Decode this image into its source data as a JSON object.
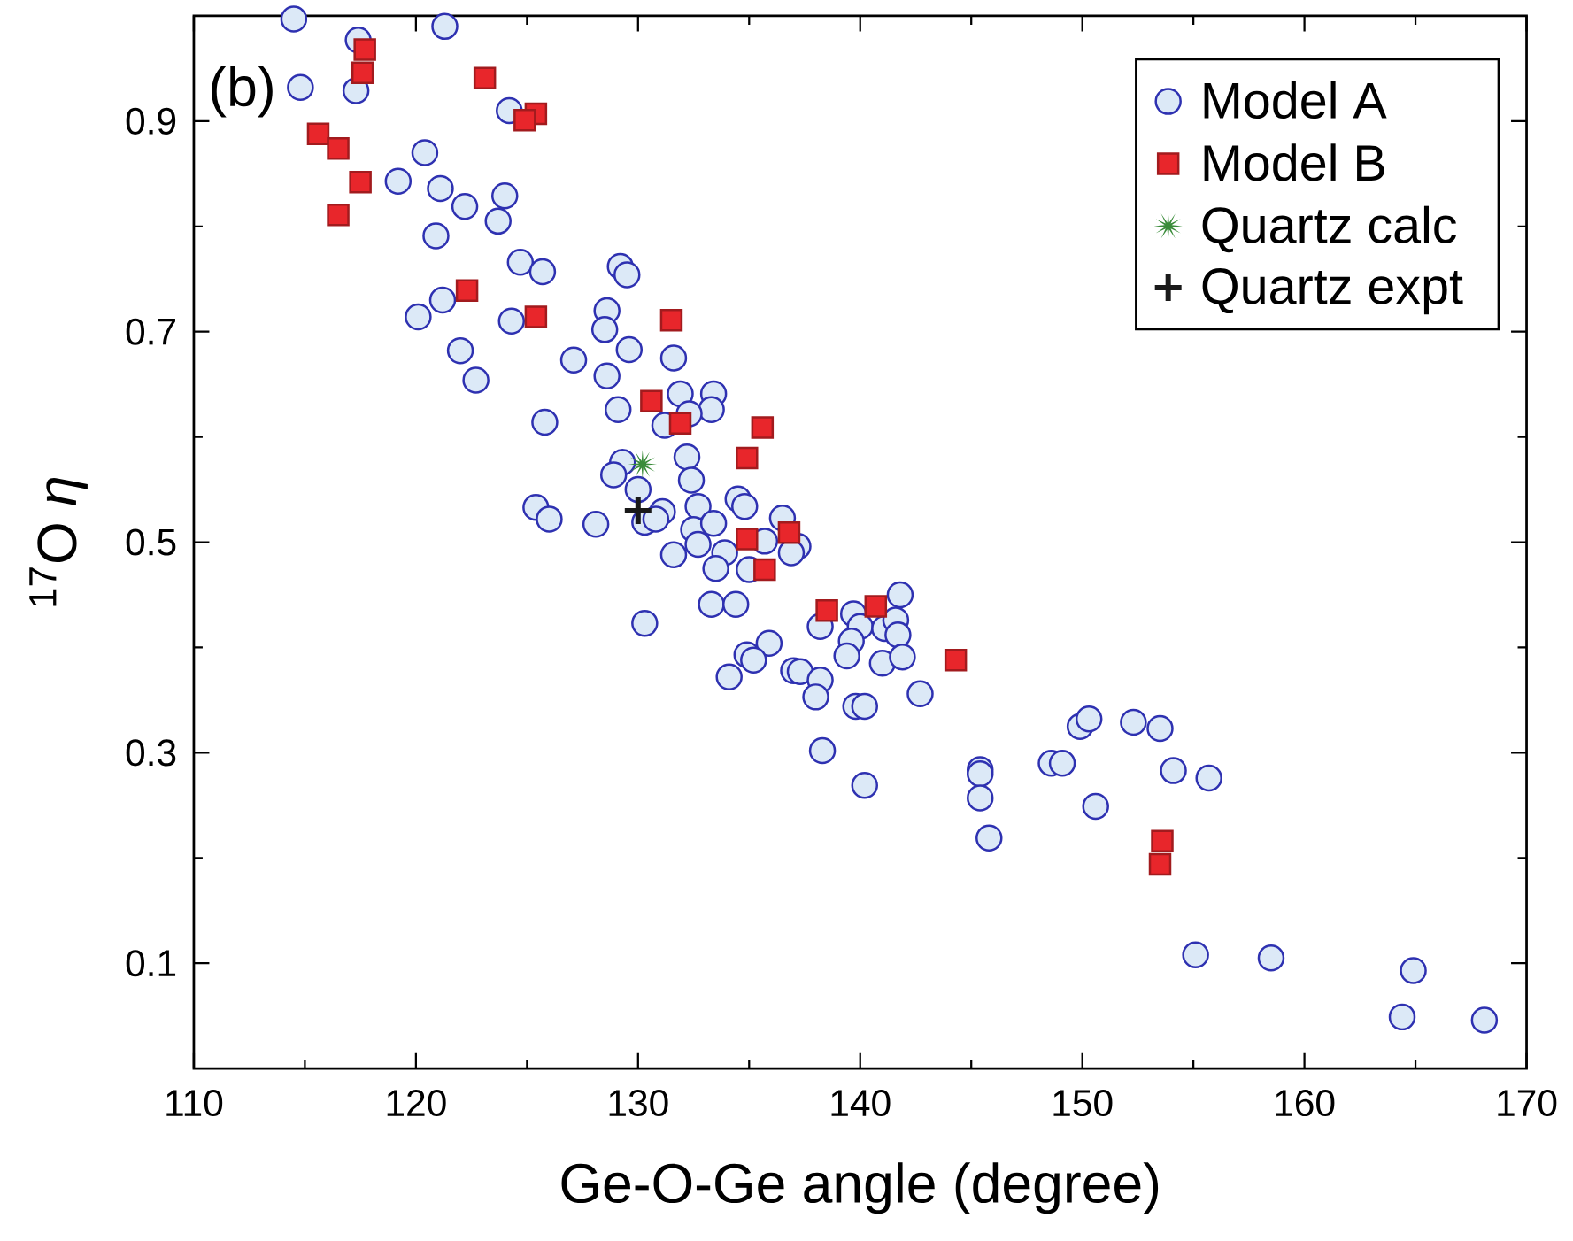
{
  "chart_data": {
    "type": "scatter",
    "xlabel": "Ge-O-Ge angle (degree)",
    "ylabel": "$^{17}$O *η*",
    "xlim": [
      110,
      170
    ],
    "ylim": [
      0,
      1
    ],
    "xticks": [
      110,
      120,
      130,
      140,
      150,
      160,
      170
    ],
    "yticks": [
      0.1,
      0.3,
      0.5,
      0.7,
      0.9
    ],
    "legend": "top right",
    "grid": false,
    "annotations": [
      "(b)"
    ],
    "series": [
      {
        "name": "Model A",
        "color": "#dce9f7",
        "marker": "circle",
        "x": [
          114.5,
          121.3,
          114.8,
          117.4,
          117.3,
          124.2,
          120.4,
          119.2,
          121.1,
          122.2,
          124.0,
          123.7,
          120.9,
          124.7,
          125.7,
          129.2,
          129.5,
          120.1,
          121.2,
          124.3,
          128.6,
          128.5,
          122.0,
          122.7,
          127.1,
          129.6,
          128.6,
          131.6,
          131.9,
          133.4,
          133.3,
          132.3,
          131.2,
          129.1,
          125.8,
          132.2,
          132.4,
          129.3,
          128.9,
          130.0,
          130.3,
          125.4,
          126.0,
          128.1,
          131.1,
          130.8,
          132.7,
          132.5,
          132.7,
          131.6,
          134.5,
          134.8,
          133.4,
          133.9,
          133.5,
          136.5,
          137.2,
          135.7,
          136.9,
          135.0,
          133.3,
          134.4,
          130.3,
          135.9,
          134.9,
          135.2,
          134.1,
          137.0,
          137.3,
          138.2,
          139.7,
          140.0,
          139.6,
          139.4,
          138.2,
          138.0,
          139.8,
          140.2,
          141.8,
          141.1,
          141.6,
          141.7,
          141.0,
          141.9,
          142.7,
          138.3,
          140.2,
          145.4,
          145.4,
          145.4,
          145.8,
          148.6,
          149.1,
          149.9,
          150.3,
          150.6,
          152.3,
          153.5,
          154.1,
          155.7,
          155.1,
          158.5,
          164.9,
          164.4,
          168.1
        ],
        "values": [
          0.997,
          0.99,
          0.932,
          0.977,
          0.929,
          0.91,
          0.87,
          0.843,
          0.836,
          0.819,
          0.829,
          0.805,
          0.791,
          0.766,
          0.757,
          0.762,
          0.754,
          0.714,
          0.73,
          0.71,
          0.72,
          0.702,
          0.682,
          0.654,
          0.673,
          0.683,
          0.658,
          0.675,
          0.641,
          0.641,
          0.626,
          0.622,
          0.611,
          0.626,
          0.614,
          0.581,
          0.559,
          0.576,
          0.564,
          0.55,
          0.519,
          0.533,
          0.522,
          0.517,
          0.529,
          0.522,
          0.534,
          0.512,
          0.498,
          0.488,
          0.541,
          0.534,
          0.518,
          0.49,
          0.475,
          0.523,
          0.496,
          0.501,
          0.49,
          0.474,
          0.441,
          0.441,
          0.423,
          0.404,
          0.393,
          0.388,
          0.372,
          0.378,
          0.377,
          0.42,
          0.432,
          0.42,
          0.406,
          0.392,
          0.369,
          0.353,
          0.344,
          0.344,
          0.45,
          0.418,
          0.426,
          0.412,
          0.385,
          0.391,
          0.356,
          0.302,
          0.269,
          0.284,
          0.28,
          0.257,
          0.219,
          0.29,
          0.29,
          0.325,
          0.332,
          0.249,
          0.329,
          0.323,
          0.283,
          0.276,
          0.108,
          0.105,
          0.093,
          0.049,
          0.046
        ]
      },
      {
        "name": "Model B",
        "color": "#e8262b",
        "marker": "square",
        "x": [
          117.7,
          117.6,
          115.6,
          116.5,
          117.5,
          116.5,
          123.1,
          125.4,
          124.9,
          122.3,
          125.4,
          131.5,
          130.6,
          131.9,
          135.6,
          134.9,
          134.9,
          136.8,
          135.7,
          138.5,
          140.7,
          144.3,
          153.6,
          153.5
        ],
        "values": [
          0.968,
          0.946,
          0.888,
          0.874,
          0.842,
          0.811,
          0.941,
          0.907,
          0.901,
          0.739,
          0.714,
          0.711,
          0.634,
          0.613,
          0.609,
          0.58,
          0.503,
          0.509,
          0.474,
          0.435,
          0.439,
          0.388,
          0.216,
          0.194
        ]
      },
      {
        "name": "Quartz calc",
        "color": "#3a8c3a",
        "marker": "star",
        "x": [
          130.2
        ],
        "values": [
          0.574
        ]
      },
      {
        "name": "Quartz expt",
        "color": "#1a1a1a",
        "marker": "cross",
        "x": [
          130.0
        ],
        "values": [
          0.53
        ]
      }
    ]
  }
}
